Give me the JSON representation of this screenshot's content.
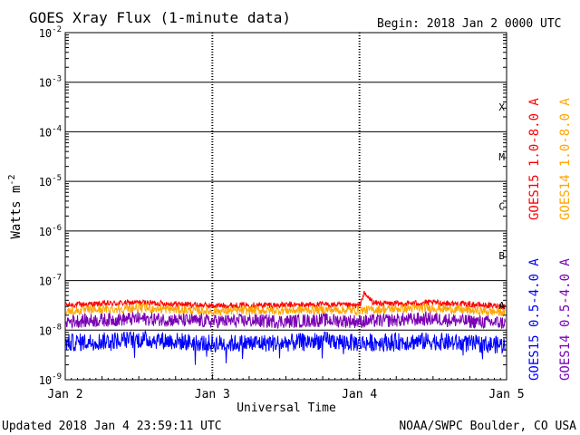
{
  "header": {
    "title": "GOES Xray Flux (1-minute data)",
    "begin": "Begin:  2018 Jan 2 0000 UTC"
  },
  "footer": {
    "updated": "Updated 2018 Jan  4 23:59:11 UTC",
    "credit": "NOAA/SWPC Boulder, CO USA"
  },
  "chart_data": {
    "type": "line",
    "title": "GOES Xray Flux (1-minute data)",
    "xlabel": "Universal Time",
    "ylabel": "Watts m",
    "ylabel_sup": "-2",
    "yscale": "log",
    "ylim": [
      1e-09,
      0.01
    ],
    "y_ticks": [
      {
        "base": "10",
        "exp": "-9",
        "value": 1e-09
      },
      {
        "base": "10",
        "exp": "-8",
        "value": 1e-08
      },
      {
        "base": "10",
        "exp": "-7",
        "value": 1e-07
      },
      {
        "base": "10",
        "exp": "-6",
        "value": 1e-06
      },
      {
        "base": "10",
        "exp": "-5",
        "value": 1e-05
      },
      {
        "base": "10",
        "exp": "-4",
        "value": 0.0001
      },
      {
        "base": "10",
        "exp": "-3",
        "value": 0.001
      },
      {
        "base": "10",
        "exp": "-2",
        "value": 0.01
      }
    ],
    "x_ticks": [
      {
        "label": "Jan 2",
        "day": 0
      },
      {
        "label": "Jan 3",
        "day": 1
      },
      {
        "label": "Jan 4",
        "day": 2
      },
      {
        "label": "Jan 5",
        "day": 3
      }
    ],
    "xlim_days": [
      0,
      3
    ],
    "flare_classes": [
      {
        "label": "A",
        "value": 1e-08
      },
      {
        "label": "B",
        "value": 1e-07
      },
      {
        "label": "C",
        "value": 1e-06
      },
      {
        "label": "M",
        "value": 1e-05
      },
      {
        "label": "X",
        "value": 0.0001
      }
    ],
    "grid": true,
    "series": [
      {
        "name": "GOES15 1.0-8.0 A",
        "color": "#ff0000",
        "day": [
          0,
          0.25,
          0.5,
          0.75,
          1.0,
          1.25,
          1.5,
          1.75,
          2.0,
          2.03,
          2.1,
          2.25,
          2.5,
          2.75,
          3.0
        ],
        "flux": [
          3.2e-08,
          3.4e-08,
          3.6e-08,
          3.4e-08,
          3.1e-08,
          3.2e-08,
          3.2e-08,
          3.3e-08,
          3.1e-08,
          5.5e-08,
          3.5e-08,
          3.4e-08,
          3.6e-08,
          3.3e-08,
          3e-08
        ]
      },
      {
        "name": "GOES14 1.0-8.0 A",
        "color": "#ffa500",
        "day": [
          0,
          0.25,
          0.5,
          0.75,
          1.0,
          1.25,
          1.5,
          1.75,
          2.0,
          2.25,
          2.5,
          2.75,
          3.0
        ],
        "flux": [
          2.4e-08,
          2.6e-08,
          2.8e-08,
          2.6e-08,
          2.4e-08,
          2.5e-08,
          2.5e-08,
          2.6e-08,
          2.5e-08,
          2.7e-08,
          2.8e-08,
          2.5e-08,
          2.3e-08
        ]
      },
      {
        "name": "GOES14 0.5-4.0 A",
        "color": "#7b00b4",
        "day": [
          0,
          0.25,
          0.5,
          0.75,
          1.0,
          1.25,
          1.5,
          1.75,
          2.0,
          2.25,
          2.5,
          2.75,
          3.0
        ],
        "flux": [
          1.5e-08,
          1.6e-08,
          1.7e-08,
          1.6e-08,
          1.5e-08,
          1.55e-08,
          1.5e-08,
          1.6e-08,
          1.5e-08,
          1.6e-08,
          1.7e-08,
          1.5e-08,
          1.4e-08
        ]
      },
      {
        "name": "GOES15 0.5-4.0 A",
        "color": "#0000ff",
        "day": [
          0,
          0.25,
          0.5,
          0.75,
          1.0,
          1.25,
          1.5,
          1.75,
          2.0,
          2.25,
          2.5,
          2.75,
          3.0
        ],
        "flux": [
          5.5e-09,
          6e-09,
          6.5e-09,
          6e-09,
          5.3e-09,
          5.5e-09,
          5.5e-09,
          6.2e-09,
          5.5e-09,
          5.8e-09,
          6e-09,
          5.3e-09,
          5e-09
        ]
      }
    ],
    "legend_placement": "right-vertical"
  }
}
